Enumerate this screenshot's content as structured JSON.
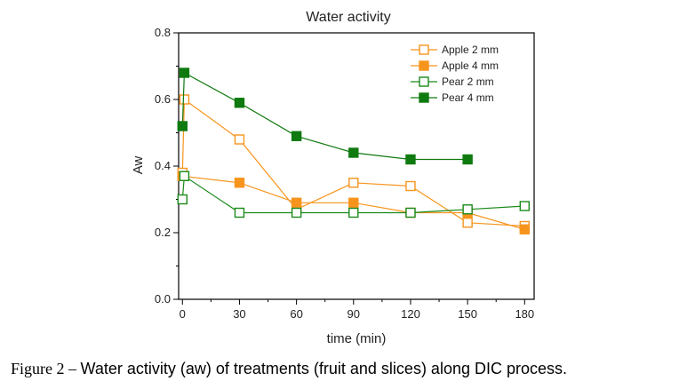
{
  "chart_data": {
    "type": "line",
    "title": "Water activity",
    "xlabel": "time (min)",
    "ylabel": "Aw",
    "xlim": [
      -2,
      185
    ],
    "ylim": [
      0.0,
      0.8
    ],
    "xticks": [
      0,
      30,
      60,
      90,
      120,
      150,
      180
    ],
    "yticks": [
      0.0,
      0.2,
      0.4,
      0.6,
      0.8
    ],
    "ytick_labels": [
      "0.0",
      "0.2",
      "0.4",
      "0.6",
      "0.8"
    ],
    "grid": false,
    "legend_position": "top-right",
    "series": [
      {
        "name": "Apple 2 mm",
        "color": "#f7941d",
        "marker": "open-square",
        "x": [
          0,
          1,
          30,
          60,
          90,
          120,
          150,
          180
        ],
        "y": [
          0.38,
          0.6,
          0.48,
          0.27,
          0.35,
          0.34,
          0.23,
          0.22
        ]
      },
      {
        "name": "Apple 4 mm",
        "color": "#f7941d",
        "marker": "filled-square",
        "x": [
          0,
          30,
          60,
          90,
          120,
          150,
          180
        ],
        "y": [
          0.37,
          0.35,
          0.29,
          0.29,
          0.26,
          0.26,
          0.21
        ]
      },
      {
        "name": "Pear 2 mm",
        "color": "#1a8a1a",
        "marker": "open-square",
        "x": [
          0,
          1,
          30,
          60,
          90,
          120,
          150,
          180
        ],
        "y": [
          0.3,
          0.37,
          0.26,
          0.26,
          0.26,
          0.26,
          0.27,
          0.28
        ]
      },
      {
        "name": "Pear 4 mm",
        "color": "#0f7a0f",
        "marker": "filled-square",
        "x": [
          0,
          1,
          30,
          60,
          90,
          120,
          150
        ],
        "y": [
          0.52,
          0.68,
          0.59,
          0.49,
          0.44,
          0.42,
          0.42
        ]
      }
    ]
  },
  "caption": {
    "label": "Figure 2 – ",
    "text": "Water activity (aw) of treatments (fruit and slices) along DIC process."
  }
}
